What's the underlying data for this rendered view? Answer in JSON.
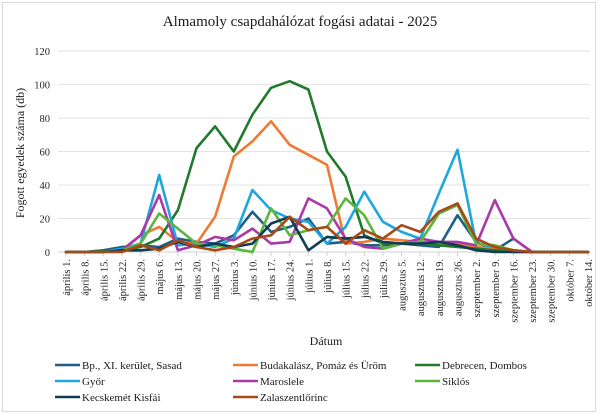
{
  "chart_data": {
    "type": "line",
    "title": "Almamoly csapdahálózat fogási adatai - 2025",
    "xlabel": "Dátum",
    "ylabel": "Fogott egyedek száma (db)",
    "ylim": [
      0,
      120
    ],
    "yticks": [
      0,
      20,
      40,
      60,
      80,
      100,
      120
    ],
    "grid": true,
    "legend_position": "bottom",
    "categories": [
      "április 1.",
      "április 8.",
      "április 15.",
      "április 22.",
      "április 29.",
      "május 6.",
      "május 13.",
      "május 20.",
      "május 27.",
      "június 3.",
      "június 10.",
      "június 17.",
      "június 24.",
      "július 1.",
      "július 8.",
      "július 15.",
      "július 22.",
      "július 29.",
      "augusztus 5.",
      "augusztus 12.",
      "augusztus 19.",
      "augusztus 26.",
      "szeptember 2.",
      "szeptember 9.",
      "szeptember 16.",
      "szeptember 23.",
      "szeptember 30.",
      "október 7.",
      "október 14."
    ],
    "series": [
      {
        "name": "Bp., XI. kerület, Sasad",
        "color": "#1f5f86",
        "values": [
          0,
          0,
          1,
          3,
          4,
          3,
          8,
          6,
          5,
          10,
          24,
          12,
          15,
          20,
          5,
          6,
          4,
          4,
          5,
          4,
          3,
          22,
          6,
          1,
          8,
          0,
          0,
          0,
          0
        ]
      },
      {
        "name": "Budakalász, Pomáz és Üröm",
        "color": "#ef7a36",
        "values": [
          0,
          0,
          0,
          1,
          10,
          15,
          6,
          5,
          21,
          57,
          66,
          78,
          64,
          58,
          52,
          5,
          6,
          8,
          7,
          6,
          5,
          5,
          3,
          2,
          1,
          0,
          0,
          0,
          0
        ]
      },
      {
        "name": "Debrecen, Dombos",
        "color": "#217a2c",
        "values": [
          0,
          0,
          0.5,
          1,
          3,
          8,
          25,
          62,
          75,
          60,
          82,
          98,
          102,
          97,
          60,
          45,
          10,
          5,
          5,
          5,
          4,
          3,
          2,
          1,
          0,
          0,
          0,
          0,
          0
        ]
      },
      {
        "name": "Győr",
        "color": "#1ea7df",
        "values": [
          0,
          0,
          0,
          2,
          5,
          46,
          4,
          5,
          3,
          8,
          37,
          25,
          20,
          18,
          5,
          15,
          36,
          18,
          12,
          8,
          35,
          61,
          5,
          3,
          1,
          0,
          0,
          0,
          0
        ]
      },
      {
        "name": "Maroslele",
        "color": "#a93aa8",
        "values": [
          0,
          0,
          0,
          1,
          10,
          34,
          1,
          4,
          9,
          7,
          14,
          5,
          6,
          32,
          26,
          8,
          3,
          2,
          5,
          8,
          6,
          6,
          4,
          31,
          8,
          0,
          0,
          0,
          0
        ]
      },
      {
        "name": "Siklós",
        "color": "#5cb53d",
        "values": [
          0,
          0,
          0,
          1,
          5,
          23,
          14,
          5,
          4,
          2,
          0,
          26,
          10,
          13,
          15,
          32,
          22,
          2,
          5,
          6,
          23,
          28,
          5,
          4,
          1,
          0,
          0,
          0,
          0
        ]
      },
      {
        "name": "Kecskemét Kisfái",
        "color": "#123b57",
        "values": [
          0,
          0,
          0,
          1,
          1,
          2,
          6,
          3,
          5,
          3,
          5,
          17,
          21,
          1,
          9,
          8,
          9,
          6,
          5,
          5,
          6,
          4,
          1,
          0,
          0,
          0,
          0,
          0,
          0
        ]
      },
      {
        "name": "Zalaszentlőrinc",
        "color": "#a84a17",
        "values": [
          0,
          0,
          0,
          0,
          4,
          1,
          7,
          3,
          1,
          3,
          8,
          10,
          21,
          13,
          15,
          5,
          13,
          8,
          16,
          12,
          24,
          29,
          8,
          3,
          1,
          0,
          0,
          0,
          0
        ]
      }
    ]
  }
}
